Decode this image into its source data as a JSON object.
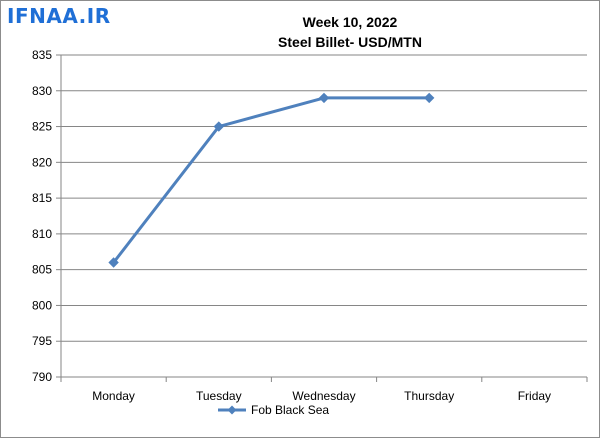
{
  "brand": "IFNAA.IR",
  "colors": {
    "series": "#4f81bd",
    "axis": "#868686",
    "grid": "#868686",
    "brand": "#1f6fd6"
  },
  "chart_data": {
    "type": "line",
    "title": "Week 10, 2022",
    "subtitle": "Steel Billet- USD/MTN",
    "categories": [
      "Monday",
      "Tuesday",
      "Wednesday",
      "Thursday",
      "Friday"
    ],
    "series": [
      {
        "name": "Fob Black Sea",
        "values": [
          806,
          825,
          829,
          829,
          null
        ],
        "marker": "diamond"
      }
    ],
    "ylim": [
      790,
      835
    ],
    "yticks": [
      790,
      795,
      800,
      805,
      810,
      815,
      820,
      825,
      830,
      835
    ],
    "grid": "horizontal",
    "legend": "bottom"
  }
}
